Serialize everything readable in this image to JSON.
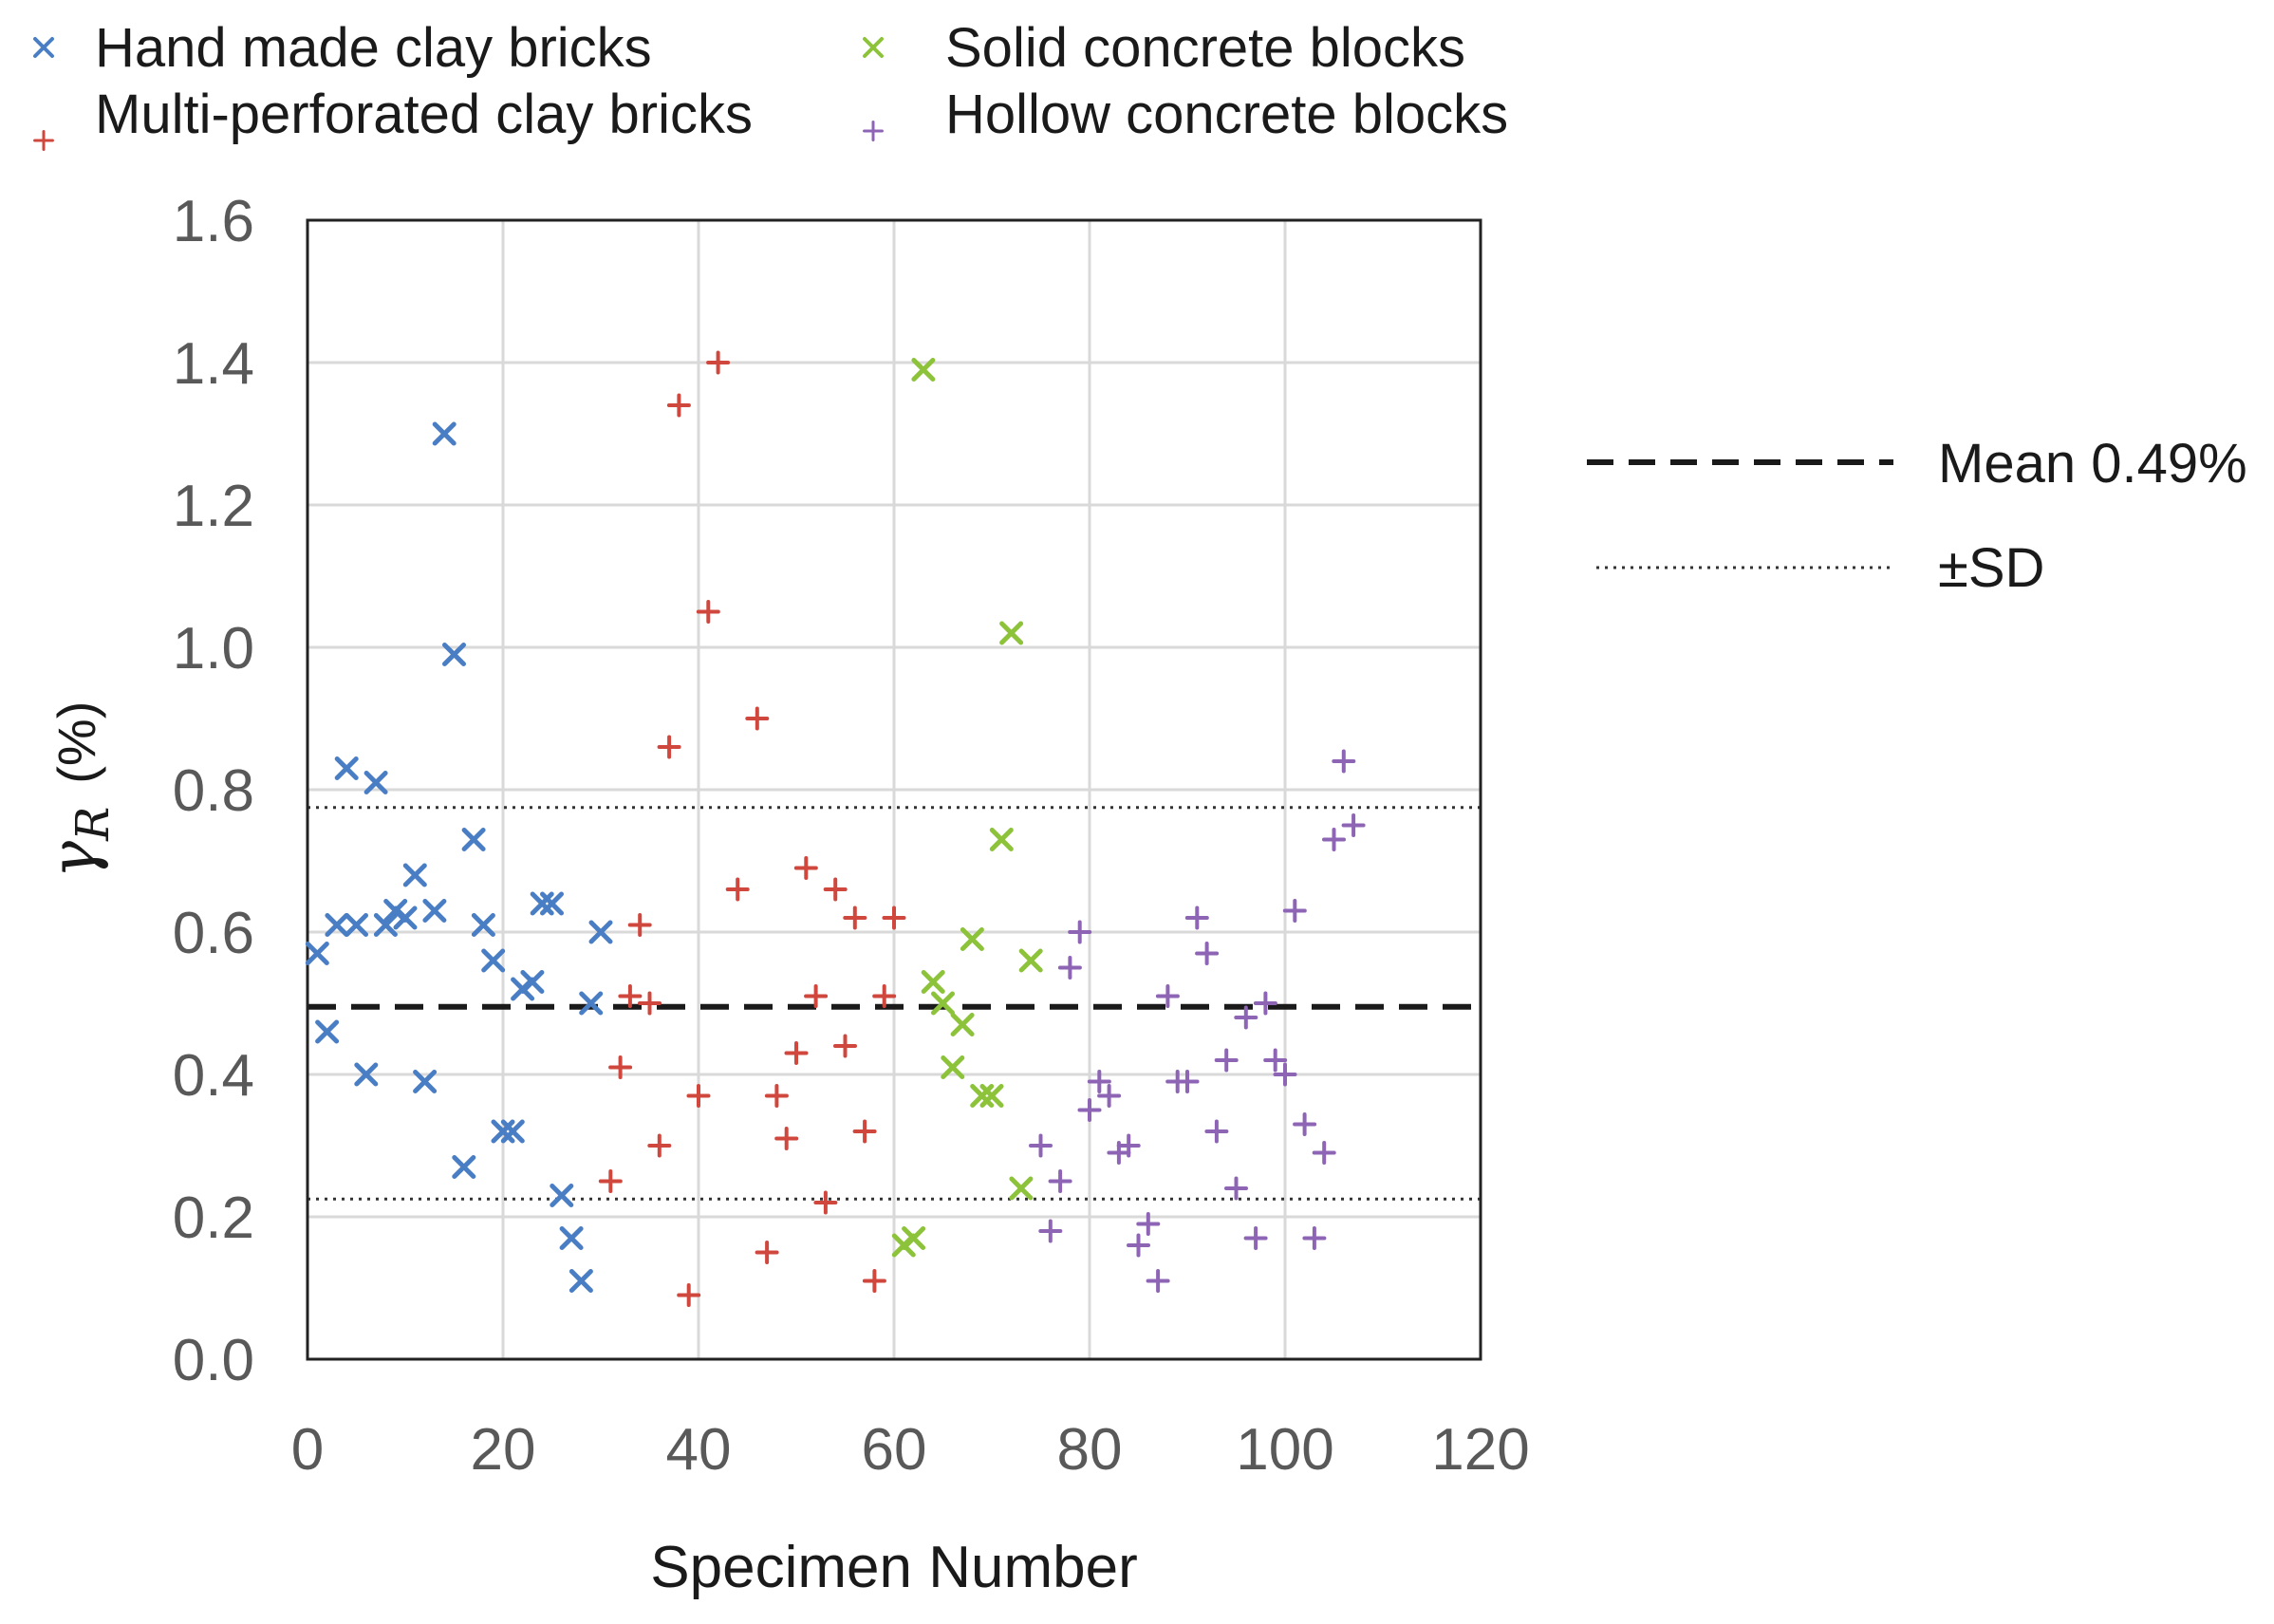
{
  "chart_data": {
    "type": "scatter",
    "title": "",
    "xlabel": "Specimen Number",
    "ylabel_symbol": "γ",
    "ylabel_subscript": "R",
    "ylabel_unit": "(%)",
    "xlim": [
      0,
      120
    ],
    "ylim": [
      0,
      1.6
    ],
    "xticks": [
      0,
      20,
      40,
      60,
      80,
      100,
      120
    ],
    "yticks": [
      0.0,
      0.2,
      0.4,
      0.6,
      0.8,
      1.0,
      1.2,
      1.4,
      1.6
    ],
    "grid": true,
    "legend_position": "top",
    "series": [
      {
        "name": "Hand made clay bricks",
        "marker": "x",
        "color": "#4a7ec4",
        "points": [
          [
            1,
            0.57
          ],
          [
            2,
            0.46
          ],
          [
            3,
            0.61
          ],
          [
            4,
            0.83
          ],
          [
            5,
            0.61
          ],
          [
            6,
            0.4
          ],
          [
            7,
            0.81
          ],
          [
            8,
            0.61
          ],
          [
            9,
            0.63
          ],
          [
            10,
            0.62
          ],
          [
            11,
            0.68
          ],
          [
            12,
            0.39
          ],
          [
            13,
            0.63
          ],
          [
            14,
            1.3
          ],
          [
            15,
            0.99
          ],
          [
            16,
            0.27
          ],
          [
            17,
            0.73
          ],
          [
            18,
            0.61
          ],
          [
            19,
            0.56
          ],
          [
            20,
            0.32
          ],
          [
            21,
            0.32
          ],
          [
            22,
            0.52
          ],
          [
            23,
            0.53
          ],
          [
            24,
            0.64
          ],
          [
            25,
            0.64
          ],
          [
            26,
            0.23
          ],
          [
            27,
            0.17
          ],
          [
            28,
            0.11
          ],
          [
            29,
            0.5
          ],
          [
            30,
            0.6
          ]
        ]
      },
      {
        "name": "Multi-perforated clay bricks",
        "marker": "+",
        "color": "#d0473e",
        "points": [
          [
            31,
            0.25
          ],
          [
            32,
            0.41
          ],
          [
            33,
            0.51
          ],
          [
            34,
            0.61
          ],
          [
            35,
            0.5
          ],
          [
            36,
            0.3
          ],
          [
            37,
            0.86
          ],
          [
            38,
            1.34
          ],
          [
            39,
            0.09
          ],
          [
            40,
            0.37
          ],
          [
            41,
            1.05
          ],
          [
            42,
            1.4
          ],
          [
            44,
            0.66
          ],
          [
            46,
            0.9
          ],
          [
            47,
            0.15
          ],
          [
            48,
            0.37
          ],
          [
            49,
            0.31
          ],
          [
            50,
            0.43
          ],
          [
            51,
            0.69
          ],
          [
            52,
            0.51
          ],
          [
            53,
            0.22
          ],
          [
            54,
            0.66
          ],
          [
            55,
            0.44
          ],
          [
            56,
            0.62
          ],
          [
            57,
            0.32
          ],
          [
            58,
            0.11
          ],
          [
            59,
            0.51
          ],
          [
            60,
            0.62
          ]
        ]
      },
      {
        "name": "Solid concrete blocks",
        "marker": "x",
        "color": "#8dc33a",
        "points": [
          [
            61,
            0.16
          ],
          [
            62,
            0.17
          ],
          [
            63,
            1.39
          ],
          [
            64,
            0.53
          ],
          [
            65,
            0.5
          ],
          [
            66,
            0.41
          ],
          [
            67,
            0.47
          ],
          [
            68,
            0.59
          ],
          [
            69,
            0.37
          ],
          [
            70,
            0.37
          ],
          [
            71,
            0.73
          ],
          [
            72,
            1.02
          ],
          [
            73,
            0.24
          ],
          [
            74,
            0.56
          ]
        ]
      },
      {
        "name": "Hollow concrete blocks",
        "marker": "+",
        "color": "#8e65b5",
        "points": [
          [
            75,
            0.3
          ],
          [
            76,
            0.18
          ],
          [
            77,
            0.25
          ],
          [
            78,
            0.55
          ],
          [
            79,
            0.6
          ],
          [
            80,
            0.35
          ],
          [
            81,
            0.39
          ],
          [
            82,
            0.37
          ],
          [
            83,
            0.29
          ],
          [
            84,
            0.3
          ],
          [
            85,
            0.16
          ],
          [
            86,
            0.19
          ],
          [
            87,
            0.11
          ],
          [
            88,
            0.51
          ],
          [
            89,
            0.39
          ],
          [
            90,
            0.39
          ],
          [
            91,
            0.62
          ],
          [
            92,
            0.57
          ],
          [
            93,
            0.32
          ],
          [
            94,
            0.42
          ],
          [
            95,
            0.24
          ],
          [
            96,
            0.48
          ],
          [
            97,
            0.17
          ],
          [
            98,
            0.5
          ],
          [
            99,
            0.42
          ],
          [
            100,
            0.4
          ],
          [
            101,
            0.63
          ],
          [
            102,
            0.33
          ],
          [
            103,
            0.17
          ],
          [
            104,
            0.29
          ],
          [
            105,
            0.73
          ],
          [
            106,
            0.84
          ],
          [
            107,
            0.75
          ]
        ]
      }
    ],
    "reference_lines": [
      {
        "name": "Mean 0.49%",
        "value": 0.495,
        "style": "dashed",
        "color": "#1a1a1a"
      },
      {
        "name": "±SD",
        "value": 0.775,
        "style": "dotted",
        "color": "#333333"
      },
      {
        "name": "±SD",
        "value": 0.225,
        "style": "dotted",
        "color": "#333333"
      }
    ],
    "side_legend": [
      {
        "label": "Mean 0.49%",
        "style": "dashed"
      },
      {
        "label": "±SD",
        "style": "dotted"
      }
    ]
  }
}
